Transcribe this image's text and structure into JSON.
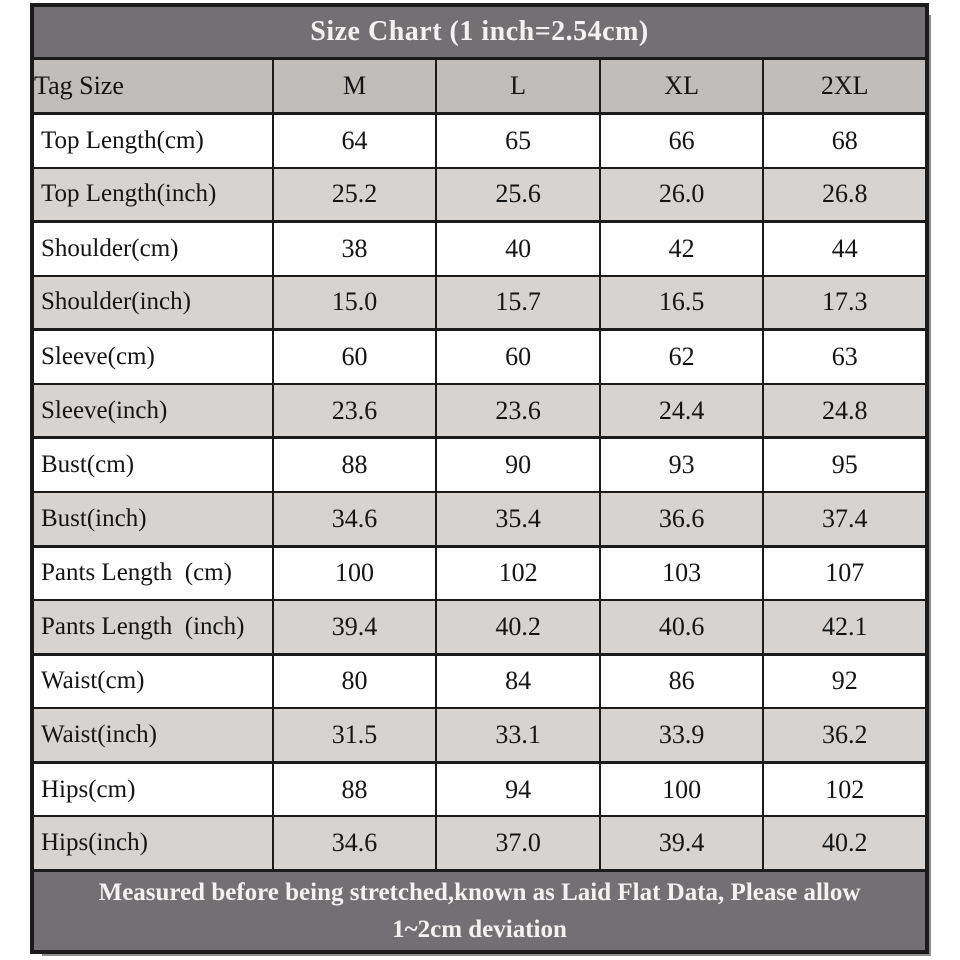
{
  "title": "Size Chart (1 inch=2.54cm)",
  "table": {
    "columns": [
      "Tag Size",
      "M",
      "L",
      "XL",
      "2XL"
    ],
    "rows": [
      {
        "label": "Top Length(cm)",
        "values": [
          "64",
          "65",
          "66",
          "68"
        ],
        "shaded": false
      },
      {
        "label": "Top Length(inch)",
        "values": [
          "25.2",
          "25.6",
          "26.0",
          "26.8"
        ],
        "shaded": true
      },
      {
        "label": "Shoulder(cm)",
        "values": [
          "38",
          "40",
          "42",
          "44"
        ],
        "shaded": false
      },
      {
        "label": "Shoulder(inch)",
        "values": [
          "15.0",
          "15.7",
          "16.5",
          "17.3"
        ],
        "shaded": true
      },
      {
        "label": "Sleeve(cm)",
        "values": [
          "60",
          "60",
          "62",
          "63"
        ],
        "shaded": false
      },
      {
        "label": "Sleeve(inch)",
        "values": [
          "23.6",
          "23.6",
          "24.4",
          "24.8"
        ],
        "shaded": true
      },
      {
        "label": "Bust(cm)",
        "values": [
          "88",
          "90",
          "93",
          "95"
        ],
        "shaded": false
      },
      {
        "label": "Bust(inch)",
        "values": [
          "34.6",
          "35.4",
          "36.6",
          "37.4"
        ],
        "shaded": true
      },
      {
        "label": "Pants Length  (cm)",
        "values": [
          "100",
          "102",
          "103",
          "107"
        ],
        "shaded": false
      },
      {
        "label": "Pants Length  (inch)",
        "values": [
          "39.4",
          "40.2",
          "40.6",
          "42.1"
        ],
        "shaded": true
      },
      {
        "label": "Waist(cm)",
        "values": [
          "80",
          "84",
          "86",
          "92"
        ],
        "shaded": false
      },
      {
        "label": "Waist(inch)",
        "values": [
          "31.5",
          "33.1",
          "33.9",
          "36.2"
        ],
        "shaded": true
      },
      {
        "label": "Hips(cm)",
        "values": [
          "88",
          "94",
          "100",
          "102"
        ],
        "shaded": false
      },
      {
        "label": "Hips(inch)",
        "values": [
          "34.6",
          "37.0",
          "39.4",
          "40.2"
        ],
        "shaded": true
      }
    ]
  },
  "footer_lines": [
    "Measured before being stretched,known as Laid Flat Data, Please allow",
    "1~2cm deviation"
  ],
  "colors": {
    "band_dark": "#727072",
    "tag_row": "#c0bdbb",
    "shaded_row": "#d6d3d1",
    "plain_row": "#fefefe",
    "border": "#1b1b1b",
    "band_text": "#f4f2f0",
    "cell_text": "#141414"
  },
  "chart_data": {
    "type": "table",
    "title": "Size Chart (1 inch=2.54cm)",
    "columns": [
      "Tag Size",
      "M",
      "L",
      "XL",
      "2XL"
    ],
    "rows": [
      [
        "Top Length(cm)",
        64,
        65,
        66,
        68
      ],
      [
        "Top Length(inch)",
        25.2,
        25.6,
        26.0,
        26.8
      ],
      [
        "Shoulder(cm)",
        38,
        40,
        42,
        44
      ],
      [
        "Shoulder(inch)",
        15.0,
        15.7,
        16.5,
        17.3
      ],
      [
        "Sleeve(cm)",
        60,
        60,
        62,
        63
      ],
      [
        "Sleeve(inch)",
        23.6,
        23.6,
        24.4,
        24.8
      ],
      [
        "Bust(cm)",
        88,
        90,
        93,
        95
      ],
      [
        "Bust(inch)",
        34.6,
        35.4,
        36.6,
        37.4
      ],
      [
        "Pants Length (cm)",
        100,
        102,
        103,
        107
      ],
      [
        "Pants Length (inch)",
        39.4,
        40.2,
        40.6,
        42.1
      ],
      [
        "Waist(cm)",
        80,
        84,
        86,
        92
      ],
      [
        "Waist(inch)",
        31.5,
        33.1,
        33.9,
        36.2
      ],
      [
        "Hips(cm)",
        88,
        94,
        100,
        102
      ],
      [
        "Hips(inch)",
        34.6,
        37.0,
        39.4,
        40.2
      ]
    ],
    "footnote": "Measured before being stretched,known as Laid Flat Data, Please allow 1~2cm deviation"
  }
}
